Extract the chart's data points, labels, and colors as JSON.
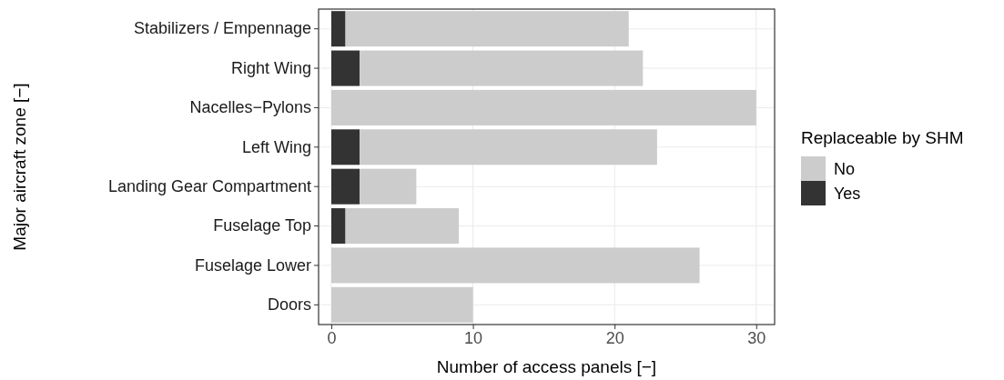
{
  "chart_data": {
    "type": "bar",
    "orientation": "horizontal",
    "stacked": true,
    "categories": [
      "Stabilizers / Empennage",
      "Right Wing",
      "Nacelles−Pylons",
      "Left Wing",
      "Landing Gear Compartment",
      "Fuselage Top",
      "Fuselage Lower",
      "Doors"
    ],
    "series": [
      {
        "name": "Yes",
        "color": "#333333",
        "values": [
          1,
          2,
          0,
          2,
          2,
          1,
          0,
          0
        ]
      },
      {
        "name": "No",
        "color": "#cccccc",
        "values": [
          20,
          20,
          30,
          21,
          4,
          8,
          26,
          10
        ]
      }
    ],
    "xlim": [
      -0.9,
      31.3
    ],
    "xticks": [
      0,
      10,
      20,
      30
    ],
    "xlabel": "Number of access panels [−]",
    "ylabel": "Major aircraft zone [−]",
    "legend_title": "Replaceable by SHM",
    "legend": "right",
    "grid": true
  }
}
